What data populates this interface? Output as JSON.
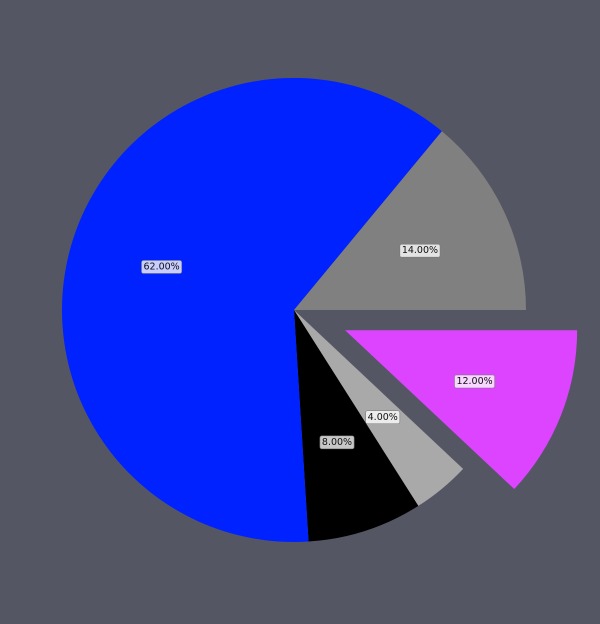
{
  "background_color": "#555663",
  "chart_data": {
    "type": "pie",
    "title": "",
    "start_angle_deg": 0,
    "direction": "clockwise",
    "slices": [
      {
        "value": 12.0,
        "label": "12.00%",
        "color": "#dd44ff",
        "exploded": true
      },
      {
        "value": 4.0,
        "label": "4.00%",
        "color": "#a9a9a9",
        "exploded": false
      },
      {
        "value": 8.0,
        "label": "8.00%",
        "color": "#000000",
        "exploded": false
      },
      {
        "value": 62.0,
        "label": "62.00%",
        "color": "#0022ff",
        "exploded": false
      },
      {
        "value": 14.0,
        "label": "14.00%",
        "color": "#808080",
        "exploded": false
      }
    ]
  }
}
